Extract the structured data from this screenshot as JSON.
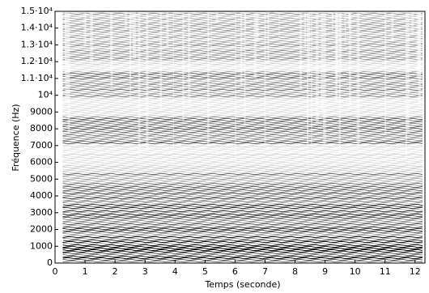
{
  "chart_data": {
    "type": "spectrogram",
    "xlabel": "Temps (seconde)",
    "ylabel": "Fréquence (Hz)",
    "xlim": [
      0,
      12.33
    ],
    "ylim": [
      0,
      15000
    ],
    "xticks": [
      0,
      1,
      2,
      3,
      4,
      5,
      6,
      7,
      8,
      9,
      10,
      11,
      12
    ],
    "yticks": [
      0,
      1000,
      2000,
      3000,
      4000,
      5000,
      6000,
      7000,
      8000,
      9000,
      {
        "value": 10000,
        "label": "10⁴"
      },
      {
        "value": 11000,
        "label": "1.1·10⁴"
      },
      {
        "value": 12000,
        "label": "1.2·10⁴"
      },
      {
        "value": 13000,
        "label": "1.3·10⁴"
      },
      {
        "value": 14000,
        "label": "1.4·10⁴"
      },
      {
        "value": 15000,
        "label": "1.5·10⁴"
      }
    ],
    "grid": false
  }
}
